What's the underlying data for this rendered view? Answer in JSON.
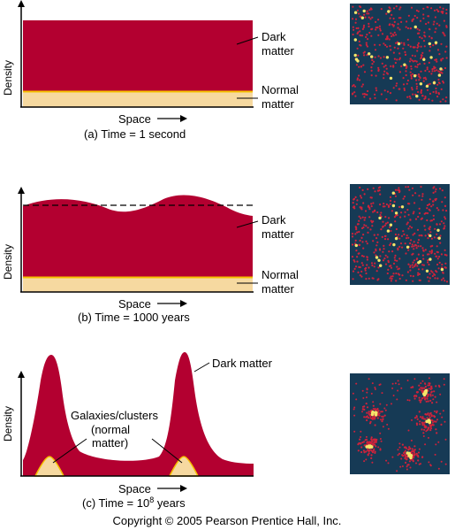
{
  "colors": {
    "dark_matter": "#b30030",
    "normal_matter": "#f6d9a0",
    "normal_matter_edge": "#f5c000",
    "box_background": "#163a55",
    "dark_dot": "#d0223b",
    "galaxy_dot": "#f5e66a"
  },
  "axis": {
    "y_label": "Density",
    "x_label": "Space"
  },
  "panels": [
    {
      "id": "a",
      "caption": "(a) Time = 1 second",
      "dark_label": [
        "Dark",
        "matter"
      ],
      "normal_label": [
        "Normal",
        "matter"
      ]
    },
    {
      "id": "b",
      "caption": "(b) Time = 1000 years",
      "dark_label": [
        "Dark",
        "matter"
      ],
      "normal_label": [
        "Normal",
        "matter"
      ]
    },
    {
      "id": "c",
      "caption_prefix": "(c) Time = 10",
      "caption_exponent": "8",
      "caption_suffix": " years",
      "dark_label": "Dark matter",
      "galaxy_label": [
        "Galaxies/clusters",
        "(normal",
        "matter)"
      ]
    }
  ],
  "copyright": "Copyright © 2005 Pearson Prentice Hall, Inc."
}
